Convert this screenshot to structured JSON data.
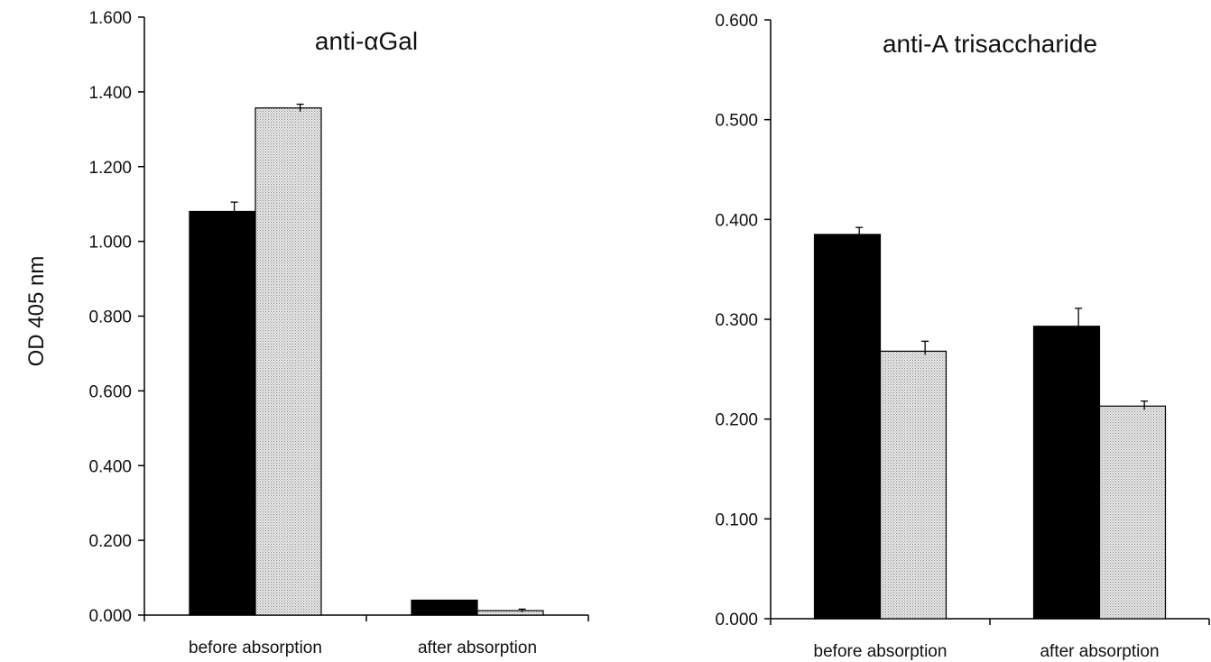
{
  "shared_ylabel": "OD 405 nm",
  "chart_data": [
    {
      "type": "bar",
      "title": "anti-αGal",
      "xlabel": "",
      "ylabel": "OD 405 nm",
      "categories": [
        "before absorption",
        "after absorption"
      ],
      "ylim": [
        0,
        1.6
      ],
      "yticks": [
        0,
        0.2,
        0.4,
        0.6,
        0.8,
        1.0,
        1.2,
        1.4,
        1.6
      ],
      "ytick_labels": [
        "0.000",
        "0.200",
        "0.400",
        "0.600",
        "0.800",
        "1.000",
        "1.200",
        "1.400",
        "1.600"
      ],
      "grid": false,
      "legend": "none",
      "series": [
        {
          "values": [
            1.08,
            0.04
          ],
          "errors": [
            0.025,
            0.0
          ],
          "color": "#000000",
          "fill": "solid"
        },
        {
          "values": [
            1.357,
            0.012
          ],
          "errors": [
            0.01,
            0.004
          ],
          "color": "#d6d6d6",
          "fill": "stippled"
        }
      ]
    },
    {
      "type": "bar",
      "title": "anti-A trisaccharide",
      "xlabel": "",
      "ylabel": "",
      "categories": [
        "before absorption",
        "after absorption"
      ],
      "ylim": [
        0,
        0.6
      ],
      "yticks": [
        0,
        0.1,
        0.2,
        0.3,
        0.4,
        0.5,
        0.6
      ],
      "ytick_labels": [
        "0.000",
        "0.100",
        "0.200",
        "0.300",
        "0.400",
        "0.500",
        "0.600"
      ],
      "grid": false,
      "legend": "none",
      "series": [
        {
          "values": [
            0.385,
            0.293
          ],
          "errors": [
            0.007,
            0.018
          ],
          "color": "#000000",
          "fill": "solid"
        },
        {
          "values": [
            0.268,
            0.213
          ],
          "errors": [
            0.01,
            0.005
          ],
          "color": "#d6d6d6",
          "fill": "stippled"
        }
      ]
    }
  ]
}
